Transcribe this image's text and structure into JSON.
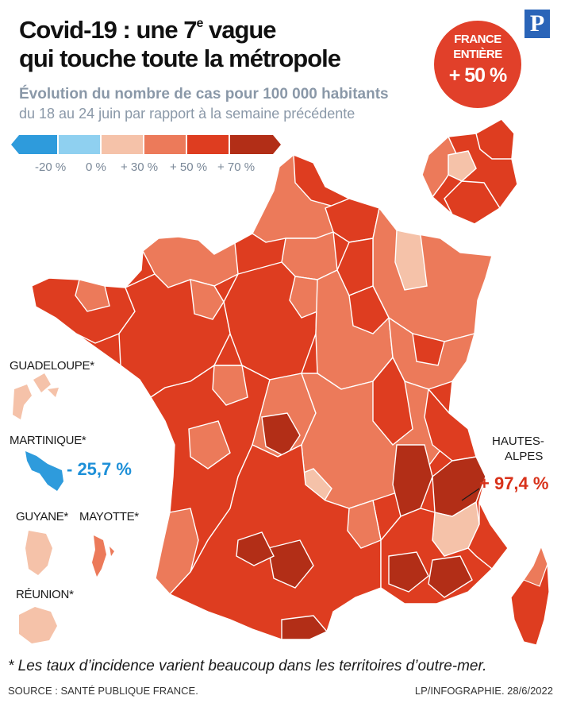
{
  "header": {
    "title_line1_pre": "Covid-19 : une 7",
    "title_sup": "e",
    "title_line1_post": " vague",
    "title_line2": "qui touche toute la métropole",
    "logo": "P",
    "subtitle_bold": "Évolution du nombre de cas pour 100 000 habitants",
    "subtitle_regular": "du 18 au 24 juin par rapport à la semaine précédente"
  },
  "badge": {
    "line1": "FRANCE",
    "line2": "ENTIÈRE",
    "line3": "+ 50 %",
    "color": "#e1402a"
  },
  "legend": {
    "ticks": [
      "-20 %",
      "0 %",
      "+ 30 %",
      "+ 50 %",
      "+ 70 %"
    ],
    "colors": [
      "#2e9bdc",
      "#8fd0f0",
      "#f5c2a9",
      "#ec7a5a",
      "#de3d20",
      "#b22e17"
    ]
  },
  "overseas": {
    "guadeloupe": "GUADELOUPE*",
    "martinique": "MARTINIQUE*",
    "martinique_value": "- 25,7 %",
    "guyane": "GUYANE*",
    "mayotte": "MAYOTTE*",
    "reunion": "RÉUNION*"
  },
  "callout": {
    "name_line1": "HAUTES-",
    "name_line2": "ALPES",
    "value": "+ 97,4 %"
  },
  "footer": {
    "footnote": "* Les taux d’incidence varient beaucoup dans les territoires d’outre-mer.",
    "source": "SOURCE : SANTÉ PUBLIQUE FRANCE.",
    "credit": "LP/INFOGRAPHIE.  28/6/2022"
  }
}
